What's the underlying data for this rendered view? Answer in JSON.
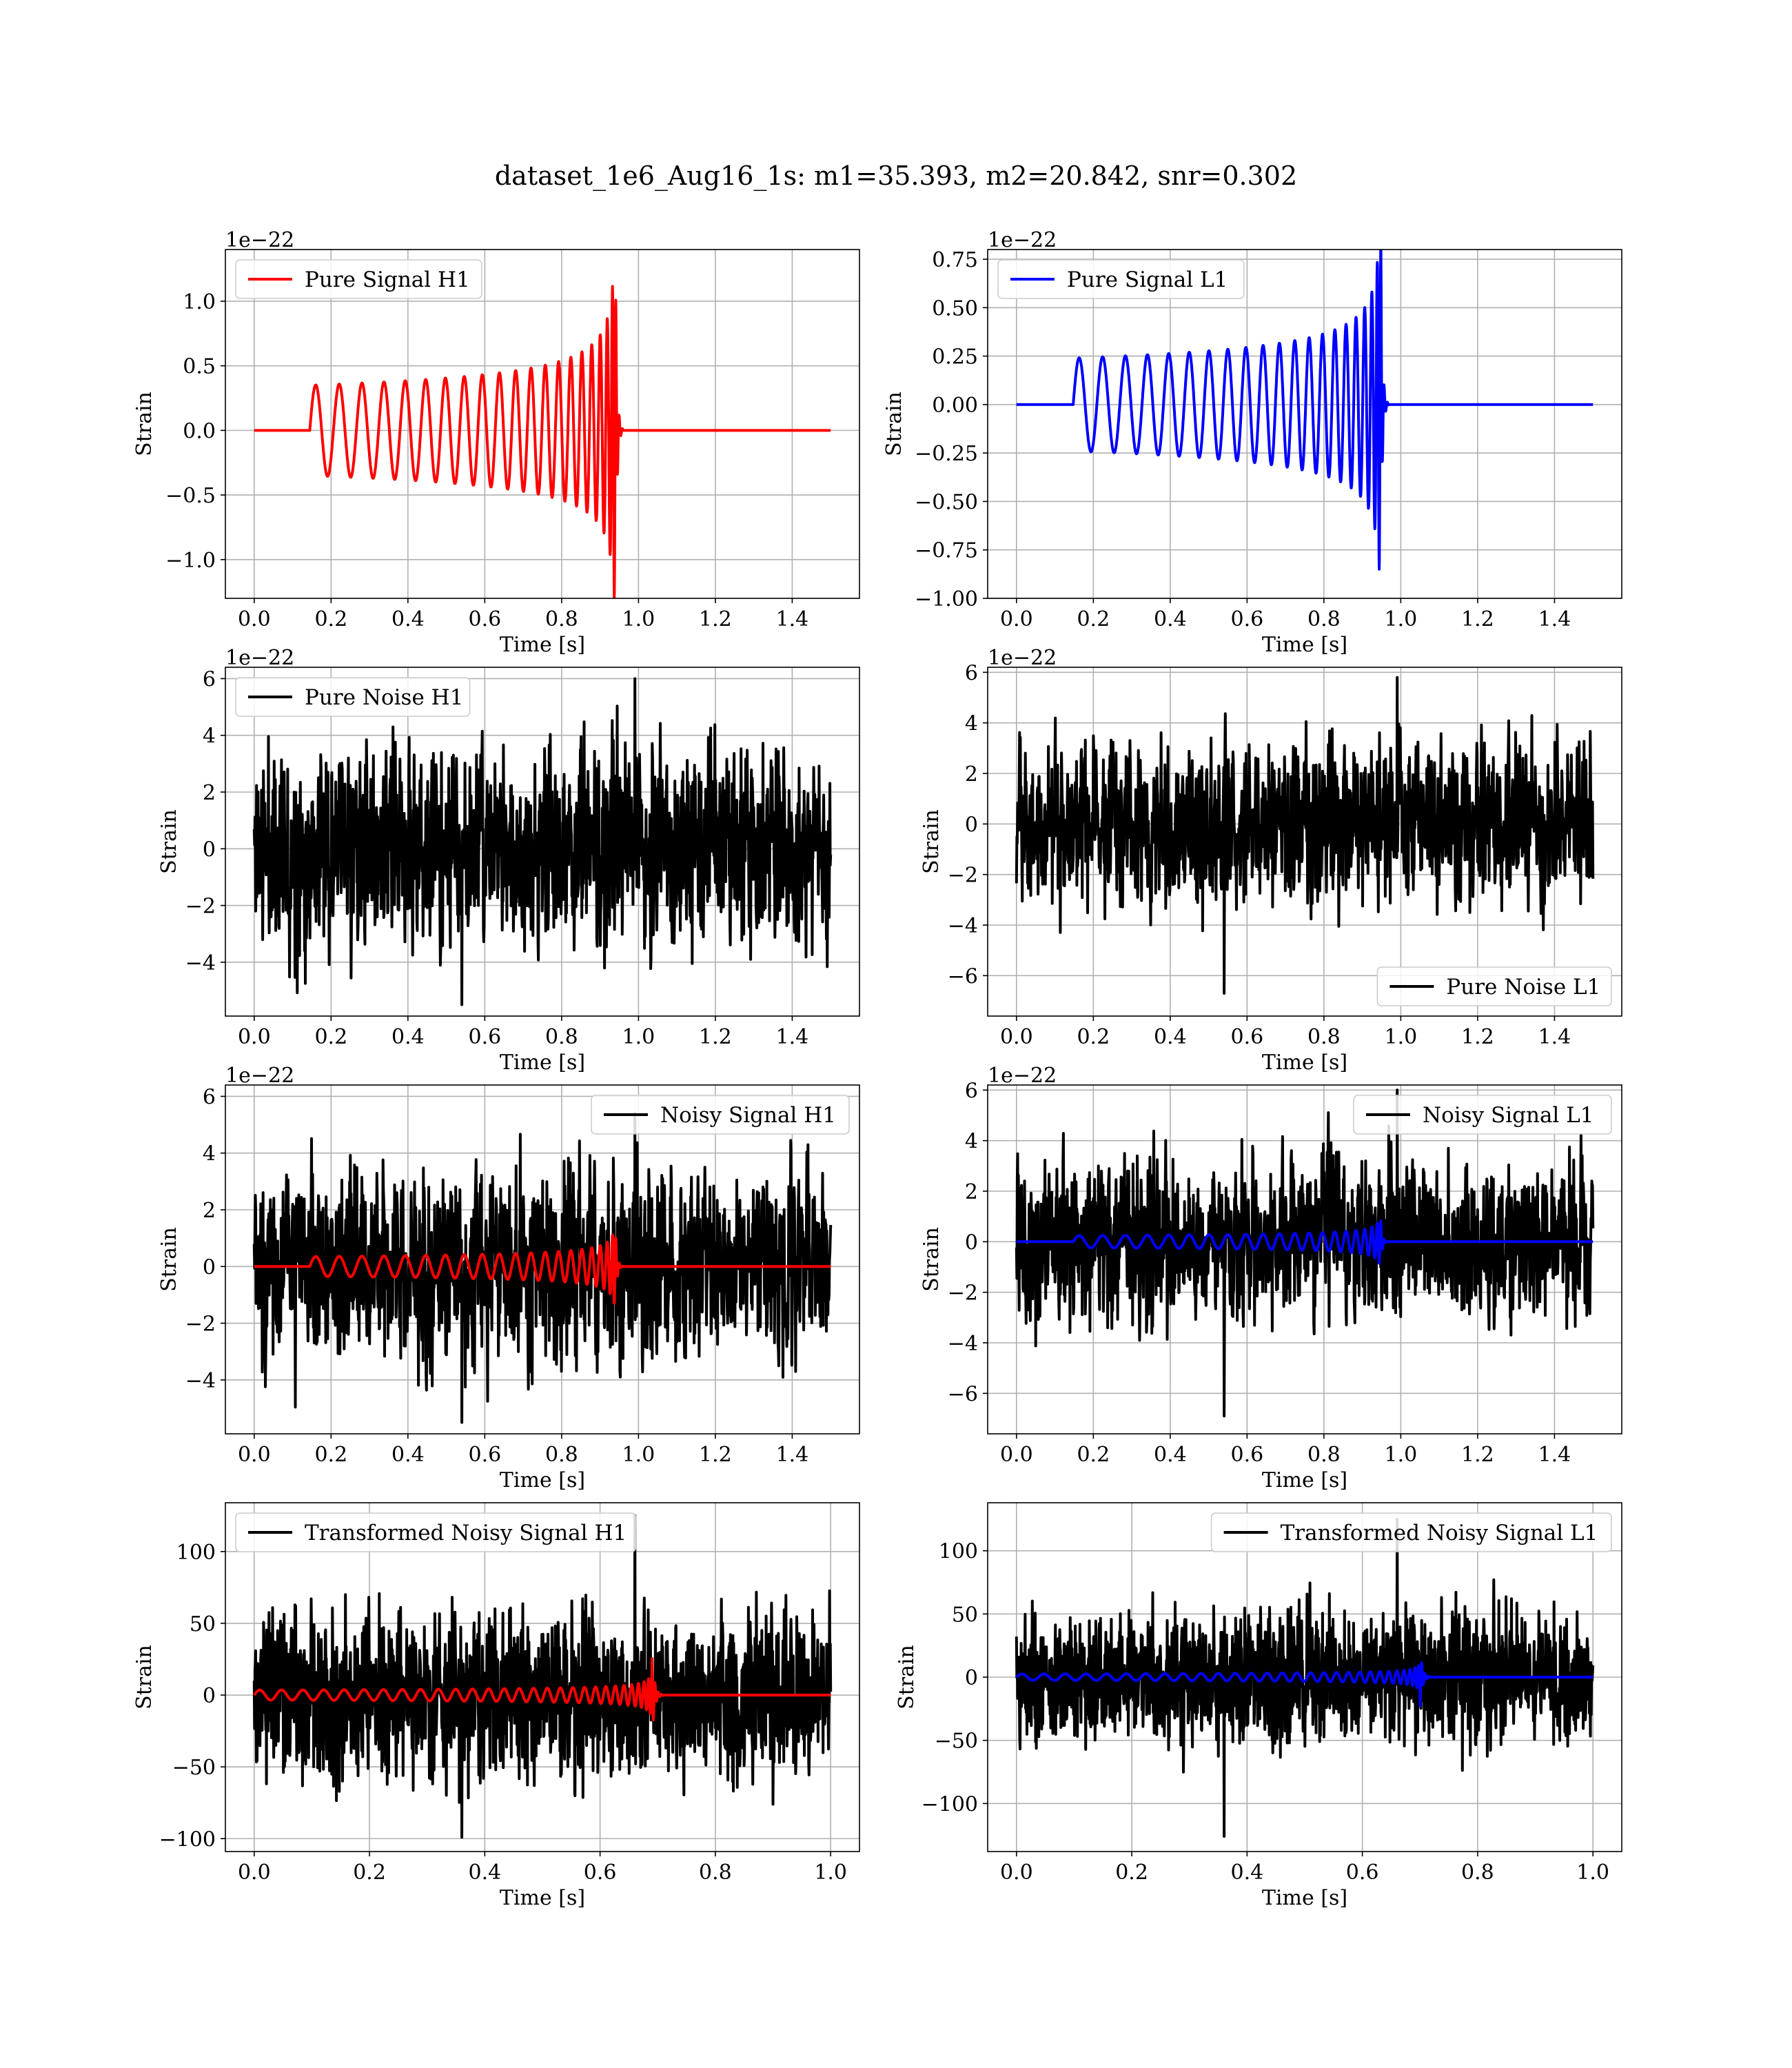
{
  "suptitle": "dataset_1e6_Aug16_1s: m1=35.393, m2=20.842, snr=0.302",
  "colors": {
    "h1_signal": "#ff0000",
    "l1_signal": "#0000ff",
    "noise": "#000000",
    "grid": "#b0b0b0"
  },
  "chart_data": [
    {
      "id": "pure-signal-h1",
      "type": "line",
      "xlabel": "Time [s]",
      "ylabel": "Strain",
      "offset_text": "1e−22",
      "xlim": [
        -0.075,
        1.575
      ],
      "ylim": [
        -1.3,
        1.4
      ],
      "xticks": [
        0.0,
        0.2,
        0.4,
        0.6,
        0.8,
        1.0,
        1.2,
        1.4
      ],
      "xtick_labels": [
        "0.0",
        "0.2",
        "0.4",
        "0.6",
        "0.8",
        "1.0",
        "1.2",
        "1.4"
      ],
      "yticks": [
        -1.0,
        -0.5,
        0.0,
        0.5,
        1.0
      ],
      "ytick_labels": [
        "−1.0",
        "−0.5",
        "0.0",
        "0.5",
        "1.0"
      ],
      "legend": "upper left",
      "grid": true,
      "series": [
        {
          "name": "Pure Signal H1",
          "color": "#ff0000",
          "kind": "chirp",
          "duration": 1.5,
          "start": 0.145,
          "merger": 0.94,
          "amp0": 0.35,
          "ampmax": 1.3,
          "f0": 16,
          "samples": 3000
        }
      ]
    },
    {
      "id": "pure-signal-l1",
      "type": "line",
      "xlabel": "Time [s]",
      "ylabel": "Strain",
      "offset_text": "1e−22",
      "xlim": [
        -0.075,
        1.575
      ],
      "ylim": [
        -1.0,
        0.8
      ],
      "xticks": [
        0.0,
        0.2,
        0.4,
        0.6,
        0.8,
        1.0,
        1.2,
        1.4
      ],
      "xtick_labels": [
        "0.0",
        "0.2",
        "0.4",
        "0.6",
        "0.8",
        "1.0",
        "1.2",
        "1.4"
      ],
      "yticks": [
        -1.0,
        -0.75,
        -0.5,
        -0.25,
        0.0,
        0.25,
        0.5,
        0.75
      ],
      "ytick_labels": [
        "−1.00",
        "−0.75",
        "−0.50",
        "−0.25",
        "0.00",
        "0.25",
        "0.50",
        "0.75"
      ],
      "legend": "upper left",
      "grid": true,
      "series": [
        {
          "name": "Pure Signal L1",
          "color": "#0000ff",
          "kind": "chirp",
          "duration": 1.5,
          "start": 0.148,
          "merger": 0.948,
          "amp0": 0.24,
          "ampmax": 0.85,
          "f0": 16,
          "samples": 3000
        }
      ]
    },
    {
      "id": "pure-noise-h1",
      "type": "line",
      "xlabel": "Time [s]",
      "ylabel": "Strain",
      "offset_text": "1e−22",
      "xlim": [
        -0.075,
        1.575
      ],
      "ylim": [
        -5.9,
        6.4
      ],
      "xticks": [
        0.0,
        0.2,
        0.4,
        0.6,
        0.8,
        1.0,
        1.2,
        1.4
      ],
      "xtick_labels": [
        "0.0",
        "0.2",
        "0.4",
        "0.6",
        "0.8",
        "1.0",
        "1.2",
        "1.4"
      ],
      "yticks": [
        -4,
        -2,
        0,
        2,
        4,
        6
      ],
      "ytick_labels": [
        "−4",
        "−2",
        "0",
        "2",
        "4",
        "6"
      ],
      "legend": "upper left",
      "grid": true,
      "series": [
        {
          "name": "Pure Noise H1",
          "color": "#000000",
          "kind": "noise",
          "duration": 1.5,
          "sigma": 1.75,
          "min": -5.5,
          "max": 6.0,
          "seed": 11,
          "samples": 1500
        }
      ]
    },
    {
      "id": "pure-noise-l1",
      "type": "line",
      "xlabel": "Time [s]",
      "ylabel": "Strain",
      "offset_text": "1e−22",
      "xlim": [
        -0.075,
        1.575
      ],
      "ylim": [
        -7.6,
        6.2
      ],
      "xticks": [
        0.0,
        0.2,
        0.4,
        0.6,
        0.8,
        1.0,
        1.2,
        1.4
      ],
      "xtick_labels": [
        "0.0",
        "0.2",
        "0.4",
        "0.6",
        "0.8",
        "1.0",
        "1.2",
        "1.4"
      ],
      "yticks": [
        -6,
        -4,
        -2,
        0,
        2,
        4,
        6
      ],
      "ytick_labels": [
        "−6",
        "−4",
        "−2",
        "0",
        "2",
        "4",
        "6"
      ],
      "legend": "lower right",
      "grid": true,
      "series": [
        {
          "name": "Pure Noise L1",
          "color": "#000000",
          "kind": "noise",
          "duration": 1.5,
          "sigma": 1.6,
          "min": -6.7,
          "max": 5.8,
          "seed": 23,
          "samples": 1500
        }
      ]
    },
    {
      "id": "noisy-signal-h1",
      "type": "line",
      "xlabel": "Time [s]",
      "ylabel": "Strain",
      "offset_text": "1e−22",
      "xlim": [
        -0.075,
        1.575
      ],
      "ylim": [
        -5.9,
        6.4
      ],
      "xticks": [
        0.0,
        0.2,
        0.4,
        0.6,
        0.8,
        1.0,
        1.2,
        1.4
      ],
      "xtick_labels": [
        "0.0",
        "0.2",
        "0.4",
        "0.6",
        "0.8",
        "1.0",
        "1.2",
        "1.4"
      ],
      "yticks": [
        -4,
        -2,
        0,
        2,
        4,
        6
      ],
      "ytick_labels": [
        "−4",
        "−2",
        "0",
        "2",
        "4",
        "6"
      ],
      "legend": "upper right",
      "grid": true,
      "series": [
        {
          "name": "Noisy Signal H1",
          "color": "#000000",
          "kind": "noise",
          "duration": 1.5,
          "sigma": 1.75,
          "min": -5.5,
          "max": 5.4,
          "seed": 37,
          "samples": 1500
        },
        {
          "name": "",
          "color": "#ff0000",
          "kind": "chirp",
          "duration": 1.5,
          "start": 0.145,
          "merger": 0.94,
          "amp0": 0.35,
          "ampmax": 1.3,
          "f0": 16,
          "samples": 3000
        }
      ]
    },
    {
      "id": "noisy-signal-l1",
      "type": "line",
      "xlabel": "Time [s]",
      "ylabel": "Strain",
      "offset_text": "1e−22",
      "xlim": [
        -0.075,
        1.575
      ],
      "ylim": [
        -7.6,
        6.2
      ],
      "xticks": [
        0.0,
        0.2,
        0.4,
        0.6,
        0.8,
        1.0,
        1.2,
        1.4
      ],
      "xtick_labels": [
        "0.0",
        "0.2",
        "0.4",
        "0.6",
        "0.8",
        "1.0",
        "1.2",
        "1.4"
      ],
      "yticks": [
        -6,
        -4,
        -2,
        0,
        2,
        4,
        6
      ],
      "ytick_labels": [
        "−6",
        "−4",
        "−2",
        "0",
        "2",
        "4",
        "6"
      ],
      "legend": "upper right",
      "grid": true,
      "series": [
        {
          "name": "Noisy Signal L1",
          "color": "#000000",
          "kind": "noise",
          "duration": 1.5,
          "sigma": 1.6,
          "min": -6.9,
          "max": 6.0,
          "seed": 53,
          "samples": 1500
        },
        {
          "name": "",
          "color": "#0000ff",
          "kind": "chirp",
          "duration": 1.5,
          "start": 0.148,
          "merger": 0.948,
          "amp0": 0.24,
          "ampmax": 0.85,
          "f0": 16,
          "samples": 3000
        }
      ]
    },
    {
      "id": "transformed-noisy-signal-h1",
      "type": "line",
      "xlabel": "Time [s]",
      "ylabel": "Strain",
      "offset_text": "",
      "xlim": [
        -0.05,
        1.05
      ],
      "ylim": [
        -109,
        134
      ],
      "xticks": [
        0.0,
        0.2,
        0.4,
        0.6,
        0.8,
        1.0
      ],
      "xtick_labels": [
        "0.0",
        "0.2",
        "0.4",
        "0.6",
        "0.8",
        "1.0"
      ],
      "yticks": [
        -100,
        -50,
        0,
        50,
        100
      ],
      "ytick_labels": [
        "−100",
        "−50",
        "0",
        "50",
        "100"
      ],
      "legend": "upper left",
      "grid": true,
      "series": [
        {
          "name": "Transformed Noisy Signal H1",
          "color": "#000000",
          "kind": "noise",
          "duration": 1.0,
          "sigma": 30,
          "min": -99,
          "max": 125,
          "seed": 71,
          "samples": 1600
        },
        {
          "name": "",
          "color": "#ff0000",
          "kind": "chirp",
          "duration": 1.0,
          "start": 0.0,
          "merger": 0.69,
          "amp0": 3.5,
          "ampmax": 32,
          "f0": 26,
          "samples": 3000
        }
      ]
    },
    {
      "id": "transformed-noisy-signal-l1",
      "type": "line",
      "xlabel": "Time [s]",
      "ylabel": "Strain",
      "offset_text": "",
      "xlim": [
        -0.05,
        1.05
      ],
      "ylim": [
        -138,
        138
      ],
      "xticks": [
        0.0,
        0.2,
        0.4,
        0.6,
        0.8,
        1.0
      ],
      "xtick_labels": [
        "0.0",
        "0.2",
        "0.4",
        "0.6",
        "0.8",
        "1.0"
      ],
      "yticks": [
        -100,
        -50,
        0,
        50,
        100
      ],
      "ytick_labels": [
        "−100",
        "−50",
        "0",
        "50",
        "100"
      ],
      "legend": "upper right",
      "grid": true,
      "series": [
        {
          "name": "Transformed Noisy Signal L1",
          "color": "#000000",
          "kind": "noise",
          "duration": 1.0,
          "sigma": 27,
          "min": -126,
          "max": 125,
          "seed": 89,
          "samples": 1600
        },
        {
          "name": "",
          "color": "#0000ff",
          "kind": "chirp",
          "duration": 1.0,
          "start": 0.0,
          "merger": 0.7,
          "amp0": 2.5,
          "ampmax": 24,
          "f0": 26,
          "samples": 3000
        }
      ]
    }
  ]
}
